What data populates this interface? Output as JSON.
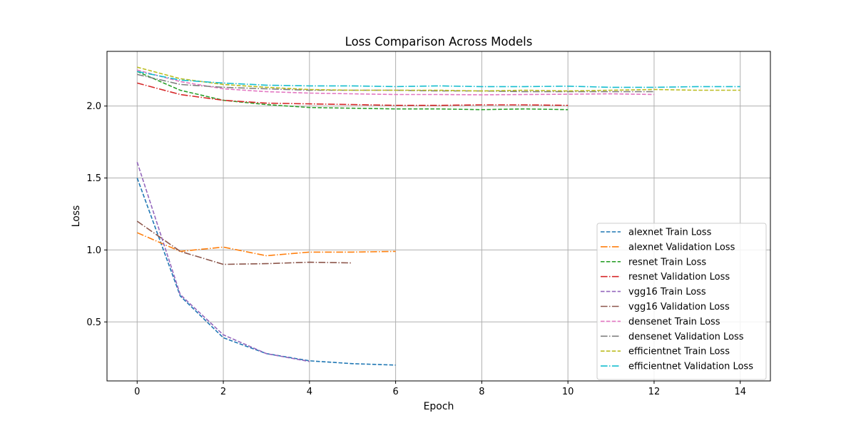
{
  "chart_data": {
    "type": "line",
    "title": "Loss Comparison Across Models",
    "xlabel": "Epoch",
    "ylabel": "Loss",
    "xlim": [
      -0.7,
      14.7
    ],
    "ylim": [
      0.09,
      2.38
    ],
    "xticks": [
      0,
      2,
      4,
      6,
      8,
      10,
      12,
      14
    ],
    "yticks": [
      0.5,
      1.0,
      1.5,
      2.0
    ],
    "xtick_labels": [
      "0",
      "2",
      "4",
      "6",
      "8",
      "10",
      "12",
      "14"
    ],
    "ytick_labels": [
      "0.5",
      "1.0",
      "1.5",
      "2.0"
    ],
    "grid": true,
    "legend_position": "lower-right",
    "series": [
      {
        "name": "alexnet Train Loss",
        "style": "dashed",
        "color": "#1f77b4",
        "x": [
          0,
          1,
          2,
          3,
          4,
          5,
          6
        ],
        "y": [
          1.5,
          0.68,
          0.39,
          0.28,
          0.23,
          0.21,
          0.2
        ]
      },
      {
        "name": "alexnet Validation Loss",
        "style": "dashdot",
        "color": "#ff7f0e",
        "x": [
          0,
          1,
          2,
          3,
          4,
          5,
          6
        ],
        "y": [
          1.12,
          0.99,
          1.02,
          0.96,
          0.985,
          0.985,
          0.99
        ]
      },
      {
        "name": "resnet Train Loss",
        "style": "dashed",
        "color": "#2ca02c",
        "x": [
          0,
          1,
          2,
          3,
          4,
          5,
          6,
          7,
          8,
          9,
          10
        ],
        "y": [
          2.24,
          2.11,
          2.04,
          2.01,
          1.99,
          1.985,
          1.98,
          1.98,
          1.975,
          1.98,
          1.975
        ]
      },
      {
        "name": "resnet Validation Loss",
        "style": "dashdot",
        "color": "#d62728",
        "x": [
          0,
          1,
          2,
          3,
          4,
          5,
          6,
          7,
          8,
          9,
          10
        ],
        "y": [
          2.16,
          2.08,
          2.04,
          2.02,
          2.015,
          2.01,
          2.005,
          2.005,
          2.008,
          2.008,
          2.005
        ]
      },
      {
        "name": "vgg16 Train Loss",
        "style": "dashed",
        "color": "#9467bd",
        "x": [
          0,
          1,
          2,
          3,
          4
        ],
        "y": [
          1.61,
          0.69,
          0.41,
          0.28,
          0.225
        ]
      },
      {
        "name": "vgg16 Validation Loss",
        "style": "dashdot",
        "color": "#8c564b",
        "x": [
          0,
          1,
          2,
          3,
          4,
          5
        ],
        "y": [
          1.2,
          0.99,
          0.9,
          0.905,
          0.915,
          0.91
        ]
      },
      {
        "name": "densenet Train Loss",
        "style": "dashed",
        "color": "#e377c2",
        "x": [
          0,
          1,
          2,
          3,
          4,
          5,
          6,
          7,
          8,
          9,
          10,
          11,
          12
        ],
        "y": [
          2.25,
          2.17,
          2.12,
          2.1,
          2.09,
          2.085,
          2.08,
          2.08,
          2.078,
          2.08,
          2.082,
          2.085,
          2.08
        ]
      },
      {
        "name": "densenet Validation Loss",
        "style": "dashdot",
        "color": "#7f7f7f",
        "x": [
          0,
          1,
          2,
          3,
          4,
          5,
          6,
          7,
          8,
          9,
          10,
          11,
          12
        ],
        "y": [
          2.22,
          2.15,
          2.13,
          2.12,
          2.11,
          2.11,
          2.11,
          2.105,
          2.105,
          2.1,
          2.1,
          2.1,
          2.1
        ]
      },
      {
        "name": "efficientnet Train Loss",
        "style": "dashed",
        "color": "#bcbd22",
        "x": [
          0,
          1,
          2,
          3,
          4,
          5,
          6,
          7,
          8,
          9,
          10,
          11,
          12,
          13,
          14
        ],
        "y": [
          2.27,
          2.19,
          2.15,
          2.13,
          2.115,
          2.11,
          2.11,
          2.11,
          2.105,
          2.11,
          2.105,
          2.11,
          2.115,
          2.11,
          2.11
        ]
      },
      {
        "name": "efficientnet Validation Loss",
        "style": "dashdot",
        "color": "#17becf",
        "x": [
          0,
          1,
          2,
          3,
          4,
          5,
          6,
          7,
          8,
          9,
          10,
          11,
          12,
          13,
          14
        ],
        "y": [
          2.24,
          2.18,
          2.16,
          2.145,
          2.14,
          2.14,
          2.135,
          2.14,
          2.135,
          2.135,
          2.138,
          2.13,
          2.13,
          2.135,
          2.135
        ]
      }
    ]
  }
}
